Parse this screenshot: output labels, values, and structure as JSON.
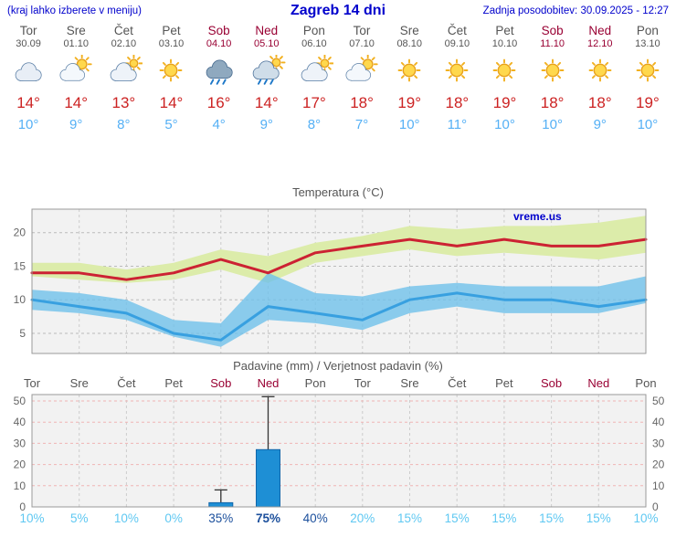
{
  "header": {
    "left_note": "(kraj lahko izberete v meniju)",
    "title": "Zagreb 14 dni",
    "updated": "Zadnja posodobitev: 30.09.2025 - 12:27"
  },
  "days": [
    {
      "name": "Tor",
      "date": "30.09",
      "weekend": false,
      "icon": "cloudy",
      "tmax": 14,
      "tmin": 10
    },
    {
      "name": "Sre",
      "date": "01.10",
      "weekend": false,
      "icon": "partly-cloudy",
      "tmax": 14,
      "tmin": 9
    },
    {
      "name": "Čet",
      "date": "02.10",
      "weekend": false,
      "icon": "mostly-cloudy",
      "tmax": 13,
      "tmin": 8
    },
    {
      "name": "Pet",
      "date": "03.10",
      "weekend": false,
      "icon": "sunny",
      "tmax": 14,
      "tmin": 5
    },
    {
      "name": "Sob",
      "date": "04.10",
      "weekend": true,
      "icon": "rain",
      "tmax": 16,
      "tmin": 4
    },
    {
      "name": "Ned",
      "date": "05.10",
      "weekend": true,
      "icon": "showers",
      "tmax": 14,
      "tmin": 9
    },
    {
      "name": "Pon",
      "date": "06.10",
      "weekend": false,
      "icon": "mostly-cloudy",
      "tmax": 17,
      "tmin": 8
    },
    {
      "name": "Tor",
      "date": "07.10",
      "weekend": false,
      "icon": "partly-cloudy",
      "tmax": 18,
      "tmin": 7
    },
    {
      "name": "Sre",
      "date": "08.10",
      "weekend": false,
      "icon": "sunny",
      "tmax": 19,
      "tmin": 10
    },
    {
      "name": "Čet",
      "date": "09.10",
      "weekend": false,
      "icon": "sunny",
      "tmax": 18,
      "tmin": 11
    },
    {
      "name": "Pet",
      "date": "10.10",
      "weekend": false,
      "icon": "sunny",
      "tmax": 19,
      "tmin": 10
    },
    {
      "name": "Sob",
      "date": "11.10",
      "weekend": true,
      "icon": "sunny",
      "tmax": 18,
      "tmin": 10
    },
    {
      "name": "Ned",
      "date": "12.10",
      "weekend": true,
      "icon": "sunny",
      "tmax": 18,
      "tmin": 9
    },
    {
      "name": "Pon",
      "date": "13.10",
      "weekend": false,
      "icon": "sunny",
      "tmax": 19,
      "tmin": 10
    }
  ],
  "chart_data": [
    {
      "type": "line",
      "title": "Temperatura (°C)",
      "watermark": "vreme.us",
      "categories": [
        "Tor 30.09",
        "Sre 01.10",
        "Čet 02.10",
        "Pet 03.10",
        "Sob 04.10",
        "Ned 05.10",
        "Pon 06.10",
        "Tor 07.10",
        "Sre 08.10",
        "Čet 09.10",
        "Pet 10.10",
        "Sob 11.10",
        "Ned 12.10",
        "Pon 13.10"
      ],
      "ylim": [
        2,
        23.5
      ],
      "yticks": [
        5,
        10,
        15,
        20
      ],
      "grid": true,
      "legend": "none",
      "series": [
        {
          "name": "max temperature",
          "color": "#cc2233",
          "values": [
            14,
            14,
            13,
            14,
            16,
            14,
            17,
            18,
            19,
            18,
            19,
            18,
            18,
            19
          ]
        },
        {
          "name": "min temperature",
          "color": "#38a0e0",
          "values": [
            10,
            9,
            8,
            5,
            4,
            9,
            8,
            7,
            10,
            11,
            10,
            10,
            9,
            10
          ]
        }
      ],
      "bands": [
        {
          "name": "max range",
          "color": "#dcecaa",
          "opacity": 1,
          "upper": [
            15.5,
            15.5,
            14.5,
            15.5,
            17.5,
            16.5,
            18.5,
            19.5,
            21,
            20.5,
            21,
            21,
            21.5,
            22.5
          ],
          "lower": [
            13.5,
            13,
            12.5,
            13,
            14.5,
            12.5,
            15.5,
            16.5,
            17.5,
            16.5,
            17,
            16.5,
            16,
            17
          ]
        },
        {
          "name": "min range",
          "color": "#6fc0ea",
          "opacity": 0.8,
          "upper": [
            11.5,
            11,
            10,
            7,
            6.5,
            14,
            11,
            10.5,
            12,
            12.5,
            12,
            12,
            12,
            13.5
          ],
          "lower": [
            8.5,
            8,
            7,
            4.5,
            3,
            7,
            6.5,
            5.5,
            8,
            9,
            8,
            8,
            8,
            9.5
          ]
        }
      ]
    },
    {
      "type": "bar",
      "title": "Padavine (mm) / Verjetnost padavin (%)",
      "categories": [
        "Tor",
        "Sre",
        "Čet",
        "Pet",
        "Sob",
        "Ned",
        "Pon",
        "Tor",
        "Sre",
        "Čet",
        "Pet",
        "Sob",
        "Ned",
        "Pon"
      ],
      "weekend_flags": [
        false,
        false,
        false,
        false,
        true,
        true,
        false,
        false,
        false,
        false,
        false,
        true,
        true,
        false
      ],
      "values": [
        0,
        0,
        0,
        0,
        2,
        27,
        0,
        0,
        0,
        0,
        0,
        0,
        0,
        0
      ],
      "whisker_max": [
        0,
        0,
        0,
        0,
        8,
        52,
        0,
        0,
        0,
        0,
        0,
        0,
        0,
        0
      ],
      "probabilities": [
        10,
        5,
        10,
        0,
        35,
        75,
        40,
        20,
        15,
        15,
        15,
        15,
        15,
        10
      ],
      "ylim": [
        0,
        53
      ],
      "yticks": [
        0,
        10,
        20,
        30,
        40,
        50
      ]
    }
  ],
  "colors": {
    "link_blue": "#0000cc",
    "day_gray": "#555555",
    "weekend_red": "#990033",
    "tmax_red": "#cc2222",
    "tmin_blue": "#55b0f5",
    "bar_fill": "#1e8fd5",
    "bar_stroke": "#1166aa",
    "whisker": "#333333",
    "prob_light": "#5fc8f2",
    "prob_dark": "#1b4f9c",
    "axis_text": "#666666"
  }
}
